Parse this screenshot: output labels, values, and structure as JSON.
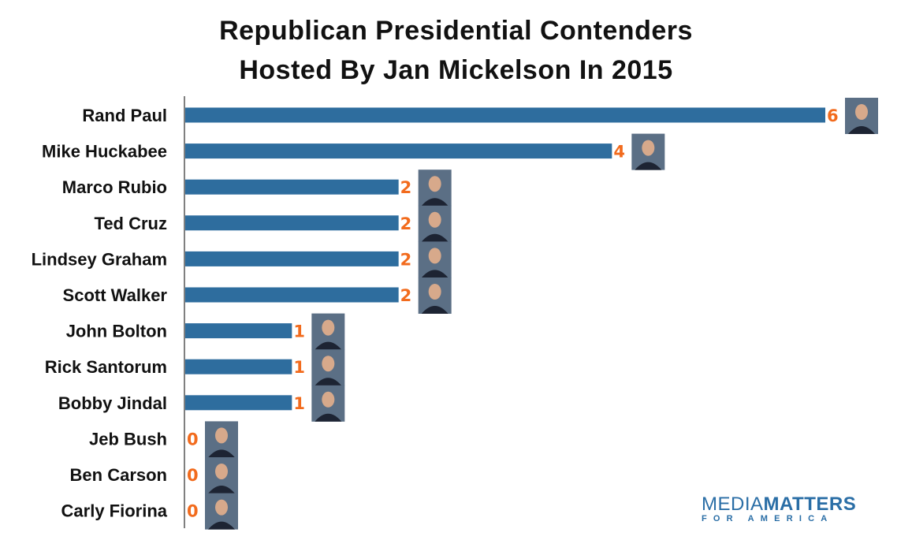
{
  "chart_data": {
    "type": "bar",
    "orientation": "horizontal",
    "title_lines": [
      "Republican Presidential Contenders",
      "Hosted By Jan Mickelson In 2015"
    ],
    "categories": [
      "Rand Paul",
      "Mike Huckabee",
      "Marco Rubio",
      "Ted Cruz",
      "Lindsey Graham",
      "Scott Walker",
      "John Bolton",
      "Rick Santorum",
      "Bobby Jindal",
      "Jeb Bush",
      "Ben Carson",
      "Carly Fiorina"
    ],
    "values": [
      6,
      4,
      2,
      2,
      2,
      2,
      1,
      1,
      1,
      0,
      0,
      0
    ],
    "xlim": [
      0,
      6
    ],
    "grid": false,
    "legend": "none",
    "data_labels": true,
    "colors": {
      "bar": "#2e6d9e",
      "label": "#f26b1d",
      "text": "#111111"
    }
  },
  "logo": {
    "line1": "MEDIA",
    "line2": "MATTERS",
    "sub": "FOR AMERICA",
    "color": "#2a6ea6"
  }
}
